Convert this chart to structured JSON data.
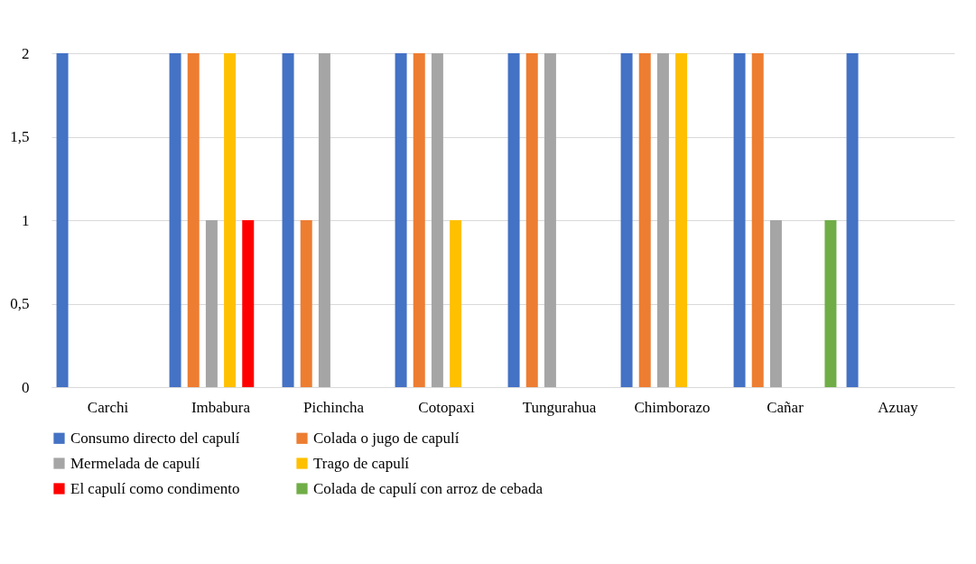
{
  "chart_data": {
    "type": "bar",
    "categories": [
      "Carchi",
      "Imbabura",
      "Pichincha",
      "Cotopaxi",
      "Tungurahua",
      "Chimborazo",
      "Cañar",
      "Azuay"
    ],
    "series": [
      {
        "name": "Consumo directo del capulí",
        "color": "#4472c4",
        "values": [
          2,
          2,
          2,
          2,
          2,
          2,
          2,
          2
        ]
      },
      {
        "name": "Colada o jugo de capulí",
        "color": "#ed7d31",
        "values": [
          0,
          2,
          1,
          2,
          2,
          2,
          2,
          0
        ]
      },
      {
        "name": "Mermelada de capulí",
        "color": "#a5a5a5",
        "values": [
          0,
          1,
          2,
          2,
          2,
          2,
          1,
          0
        ]
      },
      {
        "name": "Trago de capulí",
        "color": "#ffc000",
        "values": [
          0,
          2,
          0,
          1,
          0,
          2,
          0,
          0
        ]
      },
      {
        "name": "El capulí como condimento",
        "color": "#ff0000",
        "values": [
          0,
          1,
          0,
          0,
          0,
          0,
          0,
          0
        ]
      },
      {
        "name": "Colada de capulí con arroz de cebada",
        "color": "#70ad47",
        "values": [
          0,
          0,
          0,
          0,
          0,
          0,
          1,
          0
        ]
      }
    ],
    "ylim": [
      0,
      2
    ],
    "yticks": [
      0,
      {
        "value": 0.5,
        "label": "0,5"
      },
      1,
      {
        "value": 1.5,
        "label": "1,5"
      },
      2
    ],
    "grid": "y",
    "legend": "bottom"
  }
}
